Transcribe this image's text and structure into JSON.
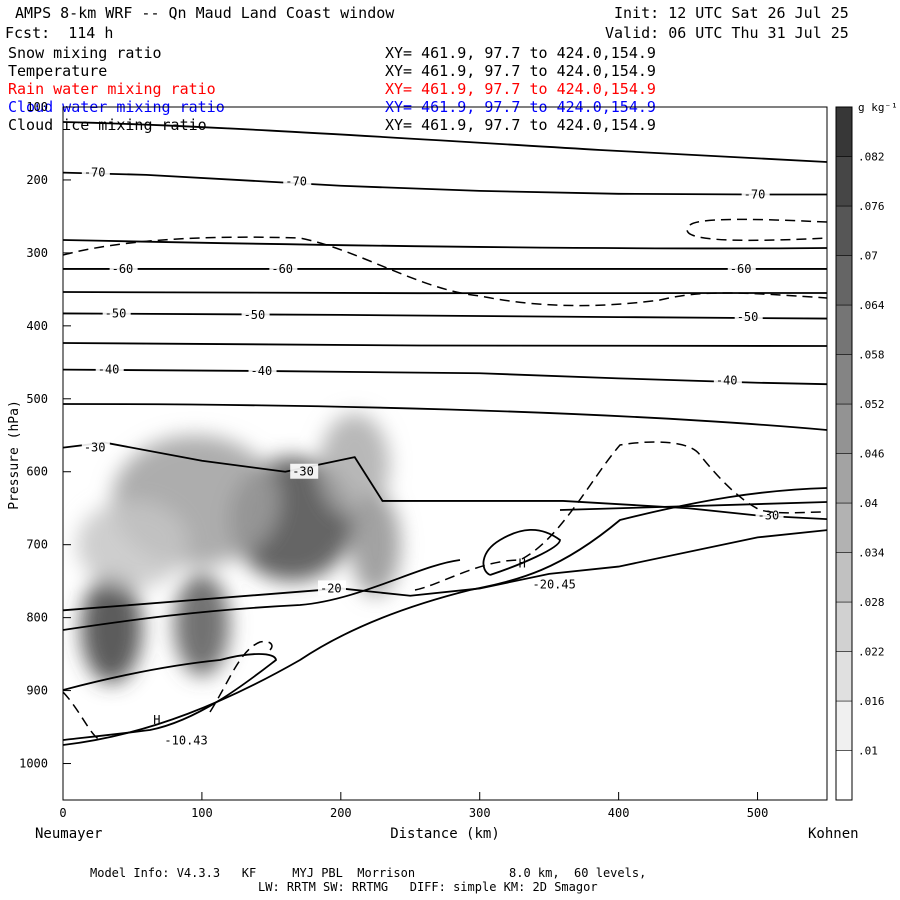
{
  "header": {
    "title": "AMPS 8-km WRF -- Qn Maud Land Coast window",
    "init": "Init: 12 UTC Sat 26 Jul 25",
    "fcst": "Fcst:  114 h",
    "valid": "Valid: 06 UTC Thu 31 Jul 25"
  },
  "fields": [
    {
      "name": "Snow mixing ratio",
      "xy": "XY= 461.9, 97.7 to 424.0,154.9",
      "color": "#000000"
    },
    {
      "name": "Temperature",
      "xy": "XY= 461.9, 97.7 to 424.0,154.9",
      "color": "#000000"
    },
    {
      "name": "Rain water mixing ratio",
      "xy": "XY= 461.9, 97.7 to 424.0,154.9",
      "color": "#ff0000"
    },
    {
      "name": "Cloud water mixing ratio",
      "xy": "XY= 461.9, 97.7 to 424.0,154.9",
      "color": "#0000ff"
    },
    {
      "name": "Cloud ice mixing ratio",
      "xy": "XY= 461.9, 97.7 to 424.0,154.9",
      "color": "#000000"
    }
  ],
  "footer": {
    "line1": "Model Info: V4.3.3   KF     MYJ PBL  Morrison             8.0 km,  60 levels,",
    "line2": "LW: RRTM SW: RRTMG   DIFF: simple KM: 2D Smagor"
  },
  "chart_data": {
    "type": "contour",
    "xlabel": "Distance (km)",
    "ylabel": "Pressure (hPa)",
    "x_left_label": "Neumayer",
    "x_right_label": "Kohnen",
    "xlim": [
      0,
      550
    ],
    "ylim": [
      1050,
      100
    ],
    "xticks": [
      0,
      100,
      200,
      300,
      400,
      500
    ],
    "yticks": [
      100,
      200,
      300,
      400,
      500,
      600,
      700,
      800,
      900,
      1000
    ],
    "colorbar": {
      "unit": "g kg⁻¹",
      "ticks": [
        ".01",
        ".016",
        ".022",
        ".028",
        ".034",
        ".04",
        ".046",
        ".052",
        ".058",
        ".064",
        ".07",
        ".076",
        ".082"
      ],
      "min": 0.007,
      "max": 0.088
    },
    "snow_blobs": [
      {
        "x": 35,
        "p": 815,
        "rx": 22,
        "rp": 75,
        "v": 0.082
      },
      {
        "x": 100,
        "p": 810,
        "rx": 20,
        "rp": 70,
        "v": 0.072
      },
      {
        "x": 165,
        "p": 665,
        "rx": 45,
        "rp": 85,
        "v": 0.078
      },
      {
        "x": 95,
        "p": 640,
        "rx": 60,
        "rp": 90,
        "v": 0.045
      },
      {
        "x": 210,
        "p": 590,
        "rx": 25,
        "rp": 70,
        "v": 0.04
      },
      {
        "x": 225,
        "p": 700,
        "rx": 18,
        "rp": 70,
        "v": 0.05
      },
      {
        "x": 50,
        "p": 700,
        "rx": 40,
        "rp": 60,
        "v": 0.03
      }
    ],
    "temperature_contours": [
      {
        "label": "-70",
        "points": [
          [
            0,
            190
          ],
          [
            60,
            193
          ],
          [
            200,
            208
          ],
          [
            300,
            215
          ],
          [
            400,
            219
          ],
          [
            500,
            220
          ],
          [
            550,
            220
          ]
        ],
        "label_at": [
          [
            15,
            190
          ],
          [
            160,
            202
          ],
          [
            490,
            220
          ]
        ]
      },
      {
        "label": "-60",
        "points": [
          [
            0,
            322
          ],
          [
            550,
            322
          ]
        ],
        "label_at": [
          [
            35,
            322
          ],
          [
            150,
            322
          ],
          [
            480,
            322
          ]
        ]
      },
      {
        "label": "-50",
        "points": [
          [
            0,
            383
          ],
          [
            200,
            385
          ],
          [
            400,
            388
          ],
          [
            550,
            390
          ]
        ],
        "label_at": [
          [
            30,
            383
          ],
          [
            130,
            385
          ],
          [
            485,
            388
          ]
        ]
      },
      {
        "label": "-40",
        "points": [
          [
            0,
            460
          ],
          [
            150,
            462
          ],
          [
            300,
            465
          ],
          [
            400,
            472
          ],
          [
            500,
            478
          ],
          [
            550,
            480
          ]
        ],
        "label_at": [
          [
            25,
            460
          ],
          [
            135,
            462
          ],
          [
            470,
            475
          ]
        ]
      },
      {
        "label": "-30",
        "points": [
          [
            0,
            567
          ],
          [
            30,
            560
          ],
          [
            100,
            585
          ],
          [
            160,
            600
          ],
          [
            210,
            580
          ],
          [
            230,
            640
          ],
          [
            300,
            640
          ],
          [
            360,
            640
          ],
          [
            450,
            650
          ],
          [
            500,
            660
          ],
          [
            550,
            665
          ]
        ],
        "label_at": [
          [
            15,
            567
          ],
          [
            165,
            600
          ],
          [
            500,
            660
          ]
        ]
      },
      {
        "label": "-20",
        "points": [
          [
            0,
            790
          ],
          [
            100,
            775
          ],
          [
            200,
            760
          ],
          [
            250,
            770
          ],
          [
            300,
            760
          ],
          [
            350,
            740
          ],
          [
            400,
            730
          ],
          [
            500,
            690
          ],
          [
            550,
            680
          ]
        ],
        "label_at": [
          [
            185,
            760
          ]
        ]
      }
    ],
    "annotations": [
      {
        "text": "H",
        "x": 65,
        "p": 946
      },
      {
        "text": "-10.43",
        "x": 73,
        "p": 974
      },
      {
        "text": "H",
        "x": 328,
        "p": 731
      },
      {
        "text": "-20.45",
        "x": 338,
        "p": 760
      }
    ]
  }
}
